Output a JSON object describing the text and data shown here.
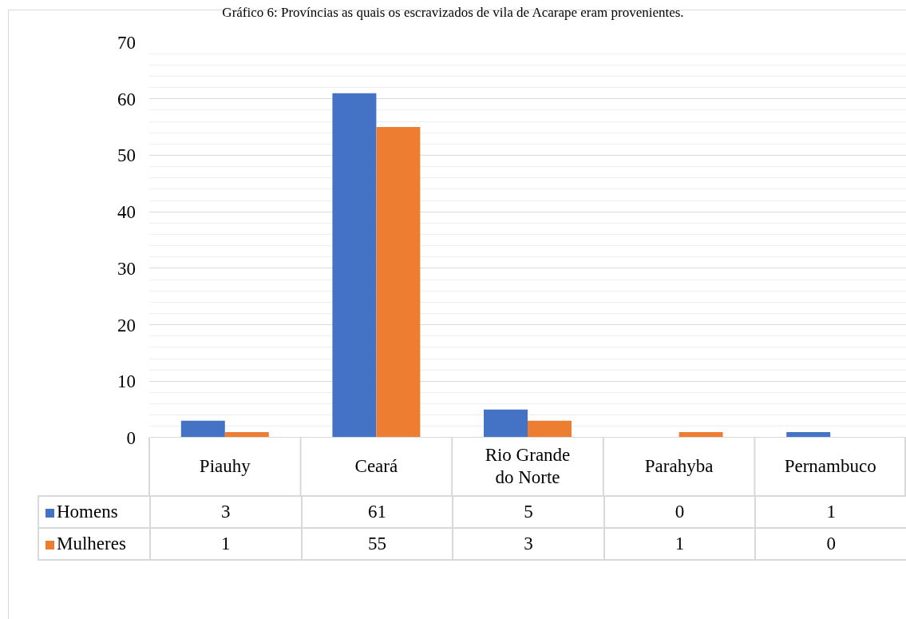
{
  "chart_data": {
    "type": "bar",
    "title": "Gráfico 6: Províncias as quais os escravizados de vila de Acarape eram provenientes.",
    "categories": [
      "Piauhy",
      "Ceará",
      "Rio Grande do Norte",
      "Parahyba",
      "Pernambuco"
    ],
    "series": [
      {
        "name": "Homens",
        "color": "#4472c4",
        "values": [
          3,
          61,
          5,
          0,
          1
        ]
      },
      {
        "name": "Mulheres",
        "color": "#ed7d31",
        "values": [
          1,
          55,
          3,
          1,
          0
        ]
      }
    ],
    "ylim": [
      0,
      70
    ],
    "yticks": [
      0,
      10,
      20,
      30,
      40,
      50,
      60,
      70
    ],
    "grid": "y",
    "legend": "bottom",
    "data_labels": true
  }
}
